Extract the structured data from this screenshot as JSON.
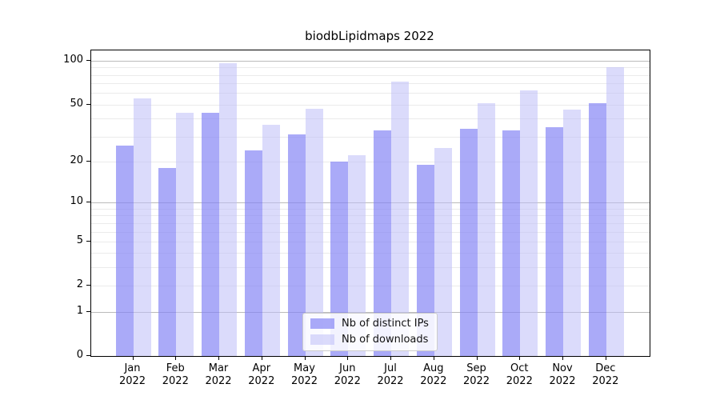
{
  "title": "biodbLipidmaps 2022",
  "colors": {
    "ips_bar": "rgba(130,130,245,0.68)",
    "downloads_bar": "rgba(190,190,248,0.55)",
    "grid_major": "#bbbbbb",
    "grid_minor": "#ebebeb",
    "axis_frame": "#000000",
    "legend_border": "#cccccc",
    "legend_bg": "#ffffff"
  },
  "chart_data": {
    "type": "bar",
    "title": "biodbLipidmaps 2022",
    "categories": [
      "Jan",
      "Feb",
      "Mar",
      "Apr",
      "May",
      "Jun",
      "Jul",
      "Aug",
      "Sep",
      "Oct",
      "Nov",
      "Dec"
    ],
    "year": "2022",
    "series": [
      {
        "name": "Nb of distinct IPs",
        "values": [
          26,
          18,
          44,
          24,
          31,
          20,
          33,
          19,
          34,
          33,
          35,
          51
        ]
      },
      {
        "name": "Nb of downloads",
        "values": [
          55,
          44,
          97,
          36,
          47,
          22,
          72,
          25,
          51,
          63,
          46,
          90
        ]
      }
    ],
    "yscale": "log1p",
    "ylim": [
      0,
      117
    ],
    "y_ticks": [
      100,
      50,
      20,
      10,
      5,
      2,
      1,
      0
    ],
    "grid_major_values": [
      1,
      10,
      100
    ],
    "grid_minor_values": [
      2,
      3,
      4,
      5,
      6,
      7,
      8,
      9,
      20,
      30,
      40,
      50,
      60,
      70,
      80,
      90
    ],
    "grid": "on",
    "legend_position": "lower center",
    "xlabel": "",
    "ylabel": ""
  }
}
